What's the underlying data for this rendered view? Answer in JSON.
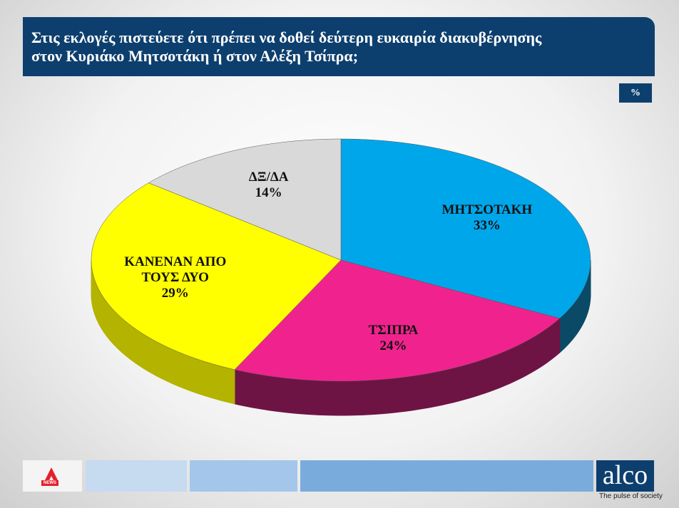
{
  "chart_data": {
    "type": "pie3d",
    "title": [
      "Στις εκλογές πιστεύετε ότι πρέπει να δοθεί δεύτερη ευκαιρία διακυβέρνησης",
      "στον Κυριάκο Μητσοτάκη ή στον Αλέξη Τσίπρα;"
    ],
    "unit_badge": "%",
    "categories": [
      "ΜΗΤΣΟΤΑΚΗ",
      "ΤΣΙΠΡΑ",
      "ΚΑΝΕΝΑΝ ΑΠΟ ΤΟΥΣ ΔΥΟ",
      "ΔΞ/ΔΑ"
    ],
    "values": [
      33,
      24,
      29,
      14
    ],
    "value_labels": [
      "33%",
      "24%",
      "29%",
      "14%"
    ],
    "colors": [
      "#00a6ea",
      "#f0238e",
      "#ffff00",
      "#d9d9d9"
    ],
    "side_colors": [
      "#0b4a66",
      "#6e1444",
      "#b3b300",
      "#9a9a9a"
    ]
  },
  "footer": {
    "news_logo": "NEWS",
    "brand": "alco",
    "tagline": "The pulse of society"
  }
}
